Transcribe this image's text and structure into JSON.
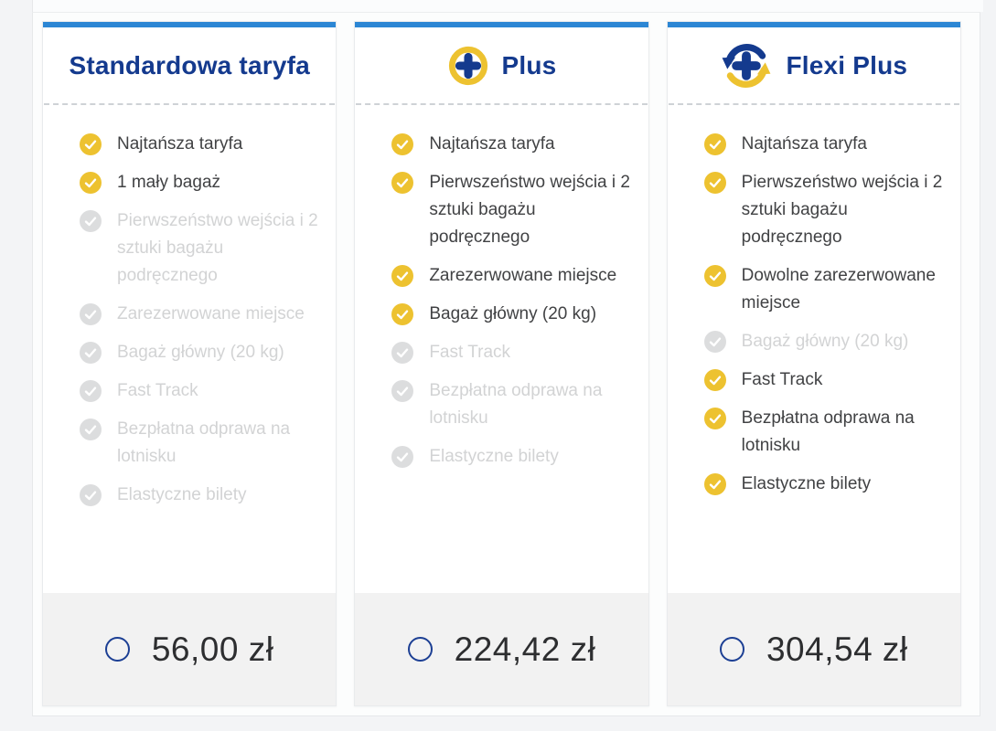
{
  "colors": {
    "accent_bar_blue": "#2c86d4",
    "brand_navy": "#143a8e",
    "check_yellow": "#edc230",
    "disabled_gray": "#dcddde",
    "footer_gray": "#f2f2f2"
  },
  "fares": [
    {
      "id": "standard",
      "title": "Standardowa taryfa",
      "icon": "none",
      "price": "56,00 zł",
      "features": [
        {
          "label": "Najtańsza taryfa",
          "included": true
        },
        {
          "label": "1 mały bagaż",
          "included": true
        },
        {
          "label": "Pierwszeństwo wejścia i 2 sztuki bagażu podręcznego",
          "included": false
        },
        {
          "label": "Zarezerwowane miejsce",
          "included": false
        },
        {
          "label": "Bagaż główny (20 kg)",
          "included": false
        },
        {
          "label": "Fast Track",
          "included": false
        },
        {
          "label": "Bezpłatna odprawa na lotnisku",
          "included": false
        },
        {
          "label": "Elastyczne bilety",
          "included": false
        }
      ]
    },
    {
      "id": "plus",
      "title": "Plus",
      "icon": "plus-circle-icon",
      "price": "224,42 zł",
      "features": [
        {
          "label": "Najtańsza taryfa",
          "included": true
        },
        {
          "label": "Pierwszeństwo wejścia i 2 sztuki bagażu podręcznego",
          "included": true
        },
        {
          "label": "Zarezerwowane miejsce",
          "included": true
        },
        {
          "label": "Bagaż główny (20 kg)",
          "included": true
        },
        {
          "label": "Fast Track",
          "included": false
        },
        {
          "label": "Bezpłatna odprawa na lotnisku",
          "included": false
        },
        {
          "label": "Elastyczne bilety",
          "included": false
        }
      ]
    },
    {
      "id": "flexi-plus",
      "title": "Flexi Plus",
      "icon": "flexi-plus-icon",
      "price": "304,54 zł",
      "features": [
        {
          "label": "Najtańsza taryfa",
          "included": true
        },
        {
          "label": "Pierwszeństwo wejścia i 2 sztuki bagażu podręcznego",
          "included": true
        },
        {
          "label": "Dowolne zarezerwowane miejsce",
          "included": true
        },
        {
          "label": "Bagaż główny (20 kg)",
          "included": false
        },
        {
          "label": "Fast Track",
          "included": true
        },
        {
          "label": "Bezpłatna odprawa na lotnisku",
          "included": true
        },
        {
          "label": "Elastyczne bilety",
          "included": true
        }
      ]
    }
  ]
}
